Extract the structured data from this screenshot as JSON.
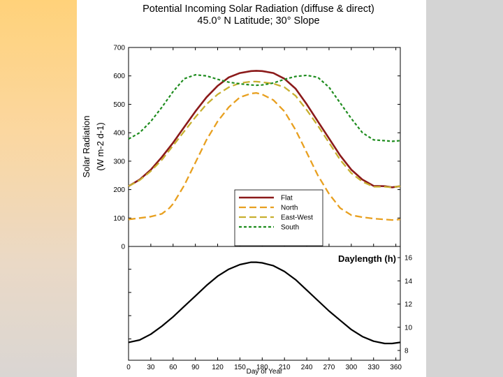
{
  "title_line1": "Potential Incoming Solar Radiation (diffuse & direct)",
  "title_line2": "45.0° N Latitude; 30° Slope",
  "colors": {
    "flat": "#8b1a1a",
    "north": "#e8a020",
    "east_west": "#c8b030",
    "south": "#1e8c1e",
    "daylength": "#000000"
  },
  "chart_data": [
    {
      "type": "line",
      "ylabel_line1": "Solar Radiation",
      "ylabel_line2": "(W m-2 d-1)",
      "ylim": [
        0,
        700
      ],
      "xlim": [
        0,
        366
      ],
      "yticks": [
        0,
        100,
        200,
        300,
        400,
        500,
        600,
        700
      ],
      "legend_position": "bottom-right",
      "series": [
        {
          "name": "Flat",
          "key": "flat",
          "style": "solid",
          "x": [
            0,
            15,
            30,
            45,
            60,
            75,
            90,
            105,
            120,
            135,
            150,
            165,
            172,
            180,
            195,
            210,
            225,
            240,
            255,
            270,
            285,
            300,
            315,
            330,
            345,
            355,
            366
          ],
          "y": [
            212,
            235,
            270,
            315,
            365,
            420,
            475,
            525,
            565,
            595,
            610,
            617,
            618,
            617,
            610,
            590,
            555,
            500,
            440,
            380,
            320,
            270,
            235,
            213,
            212,
            208,
            212
          ]
        },
        {
          "name": "North",
          "key": "north",
          "style": "dashed",
          "x": [
            0,
            15,
            30,
            45,
            55,
            60,
            75,
            90,
            105,
            120,
            135,
            150,
            165,
            172,
            180,
            195,
            210,
            225,
            240,
            255,
            270,
            285,
            300,
            315,
            330,
            345,
            355,
            366
          ],
          "y": [
            95,
            100,
            105,
            115,
            135,
            150,
            215,
            295,
            375,
            440,
            490,
            525,
            538,
            540,
            535,
            515,
            475,
            410,
            330,
            250,
            185,
            135,
            110,
            103,
            98,
            95,
            93,
            95
          ]
        },
        {
          "name": "East-West",
          "key": "east_west",
          "style": "dashed",
          "x": [
            0,
            15,
            30,
            45,
            60,
            75,
            90,
            105,
            120,
            135,
            150,
            165,
            172,
            180,
            195,
            210,
            225,
            240,
            255,
            270,
            285,
            300,
            315,
            330,
            345,
            355,
            366
          ],
          "y": [
            212,
            233,
            265,
            305,
            355,
            405,
            455,
            500,
            535,
            560,
            575,
            580,
            580,
            578,
            573,
            560,
            530,
            480,
            425,
            365,
            305,
            258,
            228,
            210,
            210,
            208,
            212
          ]
        },
        {
          "name": "South",
          "key": "south",
          "style": "dotted",
          "x": [
            0,
            15,
            30,
            45,
            60,
            75,
            90,
            105,
            120,
            135,
            150,
            165,
            172,
            180,
            195,
            210,
            225,
            240,
            255,
            270,
            285,
            300,
            315,
            330,
            345,
            355,
            366
          ],
          "y": [
            378,
            400,
            440,
            490,
            545,
            590,
            604,
            600,
            588,
            578,
            572,
            568,
            567,
            568,
            575,
            588,
            598,
            602,
            595,
            560,
            505,
            450,
            400,
            375,
            372,
            370,
            372
          ]
        }
      ]
    },
    {
      "type": "line",
      "label": "Daylength (h)",
      "xlabel": "Day of Year",
      "ylim": [
        8,
        16
      ],
      "xlim": [
        0,
        366
      ],
      "xticks": [
        0,
        30,
        60,
        90,
        120,
        150,
        180,
        210,
        240,
        270,
        300,
        330,
        360
      ],
      "yticks": [
        8,
        10,
        12,
        14,
        16
      ],
      "series": [
        {
          "key": "daylength",
          "style": "solid",
          "x": [
            0,
            15,
            30,
            45,
            60,
            75,
            90,
            105,
            120,
            135,
            150,
            165,
            172,
            180,
            195,
            210,
            225,
            240,
            255,
            270,
            285,
            300,
            315,
            330,
            345,
            355,
            366
          ],
          "y": [
            8.7,
            8.9,
            9.4,
            10.1,
            10.9,
            11.8,
            12.7,
            13.6,
            14.4,
            15.0,
            15.4,
            15.6,
            15.6,
            15.55,
            15.3,
            14.8,
            14.1,
            13.2,
            12.3,
            11.4,
            10.6,
            9.8,
            9.2,
            8.8,
            8.6,
            8.6,
            8.7
          ]
        }
      ]
    }
  ]
}
